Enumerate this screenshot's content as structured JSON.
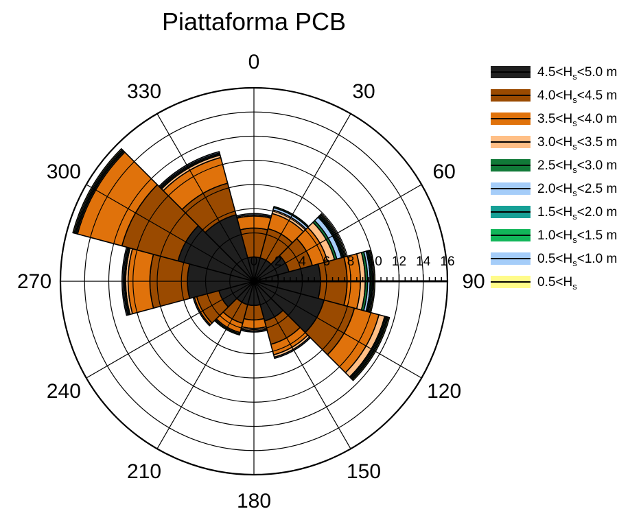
{
  "chart_data": {
    "type": "polar_stacked_bar",
    "title": "Piattaforma PCB",
    "angle_labels": [
      "0",
      "30",
      "60",
      "90",
      "120",
      "150",
      "180",
      "210",
      "240",
      "270",
      "300",
      "330"
    ],
    "radial_ticks": [
      0,
      2,
      4,
      6,
      8,
      10,
      12,
      14,
      16
    ],
    "radial_max": 16,
    "sector_width_deg": 30,
    "series": [
      {
        "name": "4.5<H_s<5.0 m",
        "pre": "4.5<H",
        "sub": "s",
        "post": "<5.0 m",
        "color": "#1f1f1f"
      },
      {
        "name": "4.0<H_s<4.5 m",
        "pre": "4.0<H",
        "sub": "s",
        "post": "<4.5 m",
        "color": "#9a4a00"
      },
      {
        "name": "3.5<H_s<4.0 m",
        "pre": "3.5<H",
        "sub": "s",
        "post": "<4.0 m",
        "color": "#e0720b"
      },
      {
        "name": "3.0<H_s<3.5 m",
        "pre": "3.0<H",
        "sub": "s",
        "post": "<3.5 m",
        "color": "#ffbf86"
      },
      {
        "name": "2.5<H_s<3.0 m",
        "pre": "2.5<H",
        "sub": "s",
        "post": "<3.0 m",
        "color": "#117a38"
      },
      {
        "name": "2.0<H_s<2.5 m",
        "pre": "2.0<H",
        "sub": "s",
        "post": "<2.5 m",
        "color": "#a5cdf9"
      },
      {
        "name": "1.5<H_s<2.0 m",
        "pre": "1.5<H",
        "sub": "s",
        "post": "<2.0 m",
        "color": "#16a096"
      },
      {
        "name": "1.0<H_s<1.5 m",
        "pre": "1.0<H",
        "sub": "s",
        "post": "<1.5 m",
        "color": "#12b65a"
      },
      {
        "name": "0.5<H_s<1.0 m",
        "pre": "0.5<H",
        "sub": "s",
        "post": "<1.0 m",
        "color": "#a5cdf9"
      },
      {
        "name": "0.5<H_s",
        "pre": "0.5<H",
        "sub": "s",
        "post": "",
        "color": "#fffb8a"
      }
    ],
    "sectors": [
      {
        "dir": 0,
        "cum": [
          2.0,
          4.4,
          5.4,
          5.5,
          5.5,
          5.6,
          5.6,
          5.6,
          5.6,
          5.6
        ]
      },
      {
        "dir": 30,
        "cum": [
          2.0,
          4.5,
          5.8,
          6.1,
          6.1,
          6.3,
          6.3,
          6.4,
          6.4,
          6.4
        ]
      },
      {
        "dir": 60,
        "cum": [
          3.0,
          5.0,
          6.3,
          6.9,
          7.1,
          7.5,
          7.6,
          7.7,
          7.8,
          7.9
        ]
      },
      {
        "dir": 90,
        "cum": [
          5.5,
          7.7,
          8.8,
          9.2,
          9.4,
          9.6,
          9.7,
          9.8,
          9.9,
          10.0
        ]
      },
      {
        "dir": 120,
        "cum": [
          6.0,
          8.6,
          10.7,
          11.2,
          11.3,
          11.4,
          11.4,
          11.5,
          11.5,
          11.6
        ]
      },
      {
        "dir": 150,
        "cum": [
          3.4,
          5.4,
          6.3,
          6.5,
          6.5,
          6.6,
          6.6,
          6.6,
          6.6,
          6.6
        ]
      },
      {
        "dir": 180,
        "cum": [
          2.0,
          3.2,
          3.9,
          4.1,
          4.1,
          4.2,
          4.2,
          4.2,
          4.2,
          4.2
        ]
      },
      {
        "dir": 210,
        "cum": [
          2.0,
          3.6,
          4.4,
          4.5,
          4.6,
          4.6,
          4.6,
          4.6,
          4.6,
          4.6
        ]
      },
      {
        "dir": 240,
        "cum": [
          3.0,
          4.9,
          5.1,
          5.1,
          5.1,
          5.2,
          5.2,
          5.2,
          5.2,
          5.2
        ]
      },
      {
        "dir": 270,
        "cum": [
          5.5,
          8.6,
          10.4,
          10.6,
          10.7,
          10.8,
          10.8,
          10.8,
          10.9,
          10.9
        ]
      },
      {
        "dir": 300,
        "cum": [
          6.5,
          11.3,
          15.1,
          15.2,
          15.3,
          15.4,
          15.4,
          15.4,
          15.4,
          15.5
        ]
      },
      {
        "dir": 330,
        "cum": [
          5.7,
          8.4,
          10.6,
          10.8,
          10.9,
          11.0,
          11.0,
          11.0,
          11.1,
          11.1
        ]
      }
    ]
  }
}
